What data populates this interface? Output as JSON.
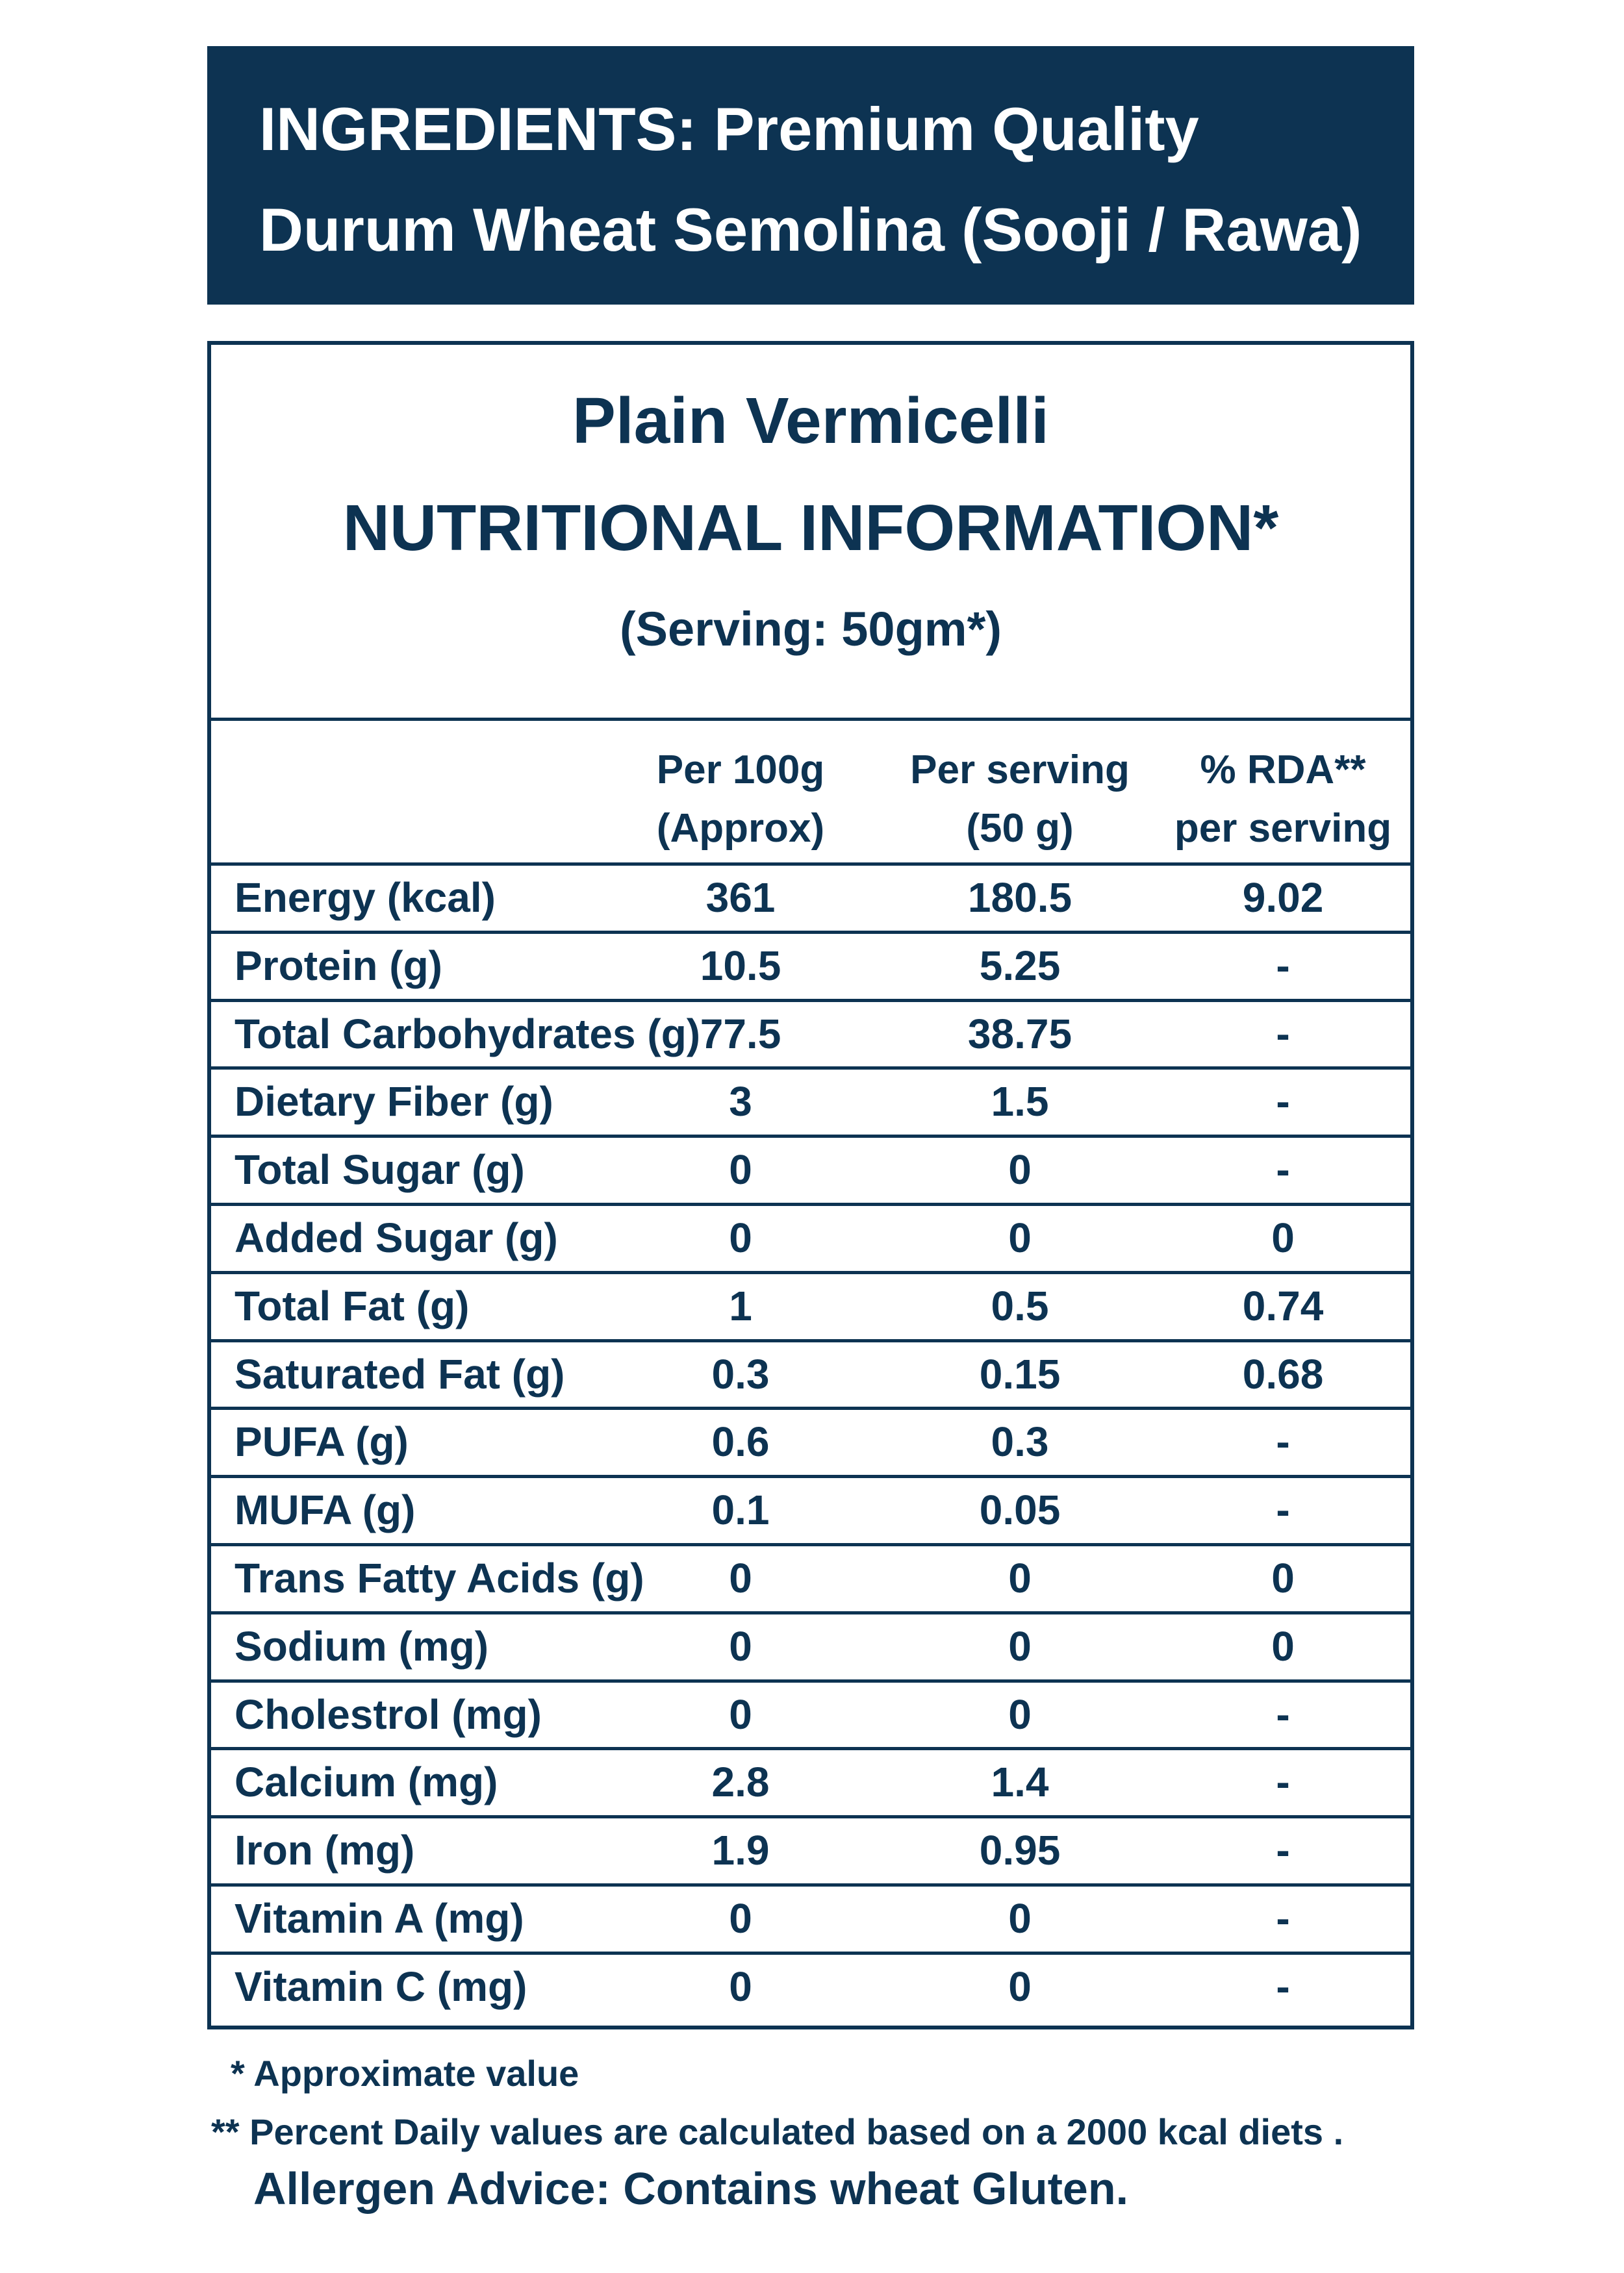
{
  "ingredients": {
    "line1": "INGREDIENTS: Premium Quality",
    "line2": "Durum Wheat Semolina (Sooji / Rawa)"
  },
  "panel": {
    "product": "Plain Vermicelli",
    "title": "NUTRITIONAL INFORMATION*",
    "serving": "(Serving: 50gm*)"
  },
  "columns": [
    {
      "line1": "Per 100g",
      "line2": "(Approx)"
    },
    {
      "line1": "Per serving",
      "line2": "(50 g)"
    },
    {
      "line1": "% RDA**",
      "line2": "per serving"
    }
  ],
  "rows": [
    {
      "label": "Energy (kcal)",
      "per100": "361",
      "serving": "180.5",
      "rda": "9.02"
    },
    {
      "label": "Protein (g)",
      "per100": "10.5",
      "serving": "5.25",
      "rda": "-"
    },
    {
      "label": "Total Carbohydrates (g)",
      "per100": "77.5",
      "serving": "38.75",
      "rda": "-"
    },
    {
      "label": "Dietary Fiber (g)",
      "per100": "3",
      "serving": "1.5",
      "rda": "-"
    },
    {
      "label": "Total Sugar (g)",
      "per100": "0",
      "serving": "0",
      "rda": "-"
    },
    {
      "label": "Added Sugar (g)",
      "per100": "0",
      "serving": "0",
      "rda": "0"
    },
    {
      "label": "Total Fat (g)",
      "per100": "1",
      "serving": "0.5",
      "rda": "0.74"
    },
    {
      "label": "Saturated Fat (g)",
      "per100": "0.3",
      "serving": "0.15",
      "rda": "0.68"
    },
    {
      "label": "PUFA (g)",
      "per100": "0.6",
      "serving": "0.3",
      "rda": "-"
    },
    {
      "label": "MUFA (g)",
      "per100": "0.1",
      "serving": "0.05",
      "rda": "-"
    },
    {
      "label": "Trans Fatty Acids (g)",
      "per100": "0",
      "serving": "0",
      "rda": "0"
    },
    {
      "label": "Sodium (mg)",
      "per100": "0",
      "serving": "0",
      "rda": "0"
    },
    {
      "label": "Cholestrol (mg)",
      "per100": "0",
      "serving": "0",
      "rda": "-"
    },
    {
      "label": "Calcium (mg)",
      "per100": "2.8",
      "serving": "1.4",
      "rda": "-"
    },
    {
      "label": "Iron (mg)",
      "per100": "1.9",
      "serving": "0.95",
      "rda": "-"
    },
    {
      "label": "Vitamin A (mg)",
      "per100": "0",
      "serving": "0",
      "rda": "-"
    },
    {
      "label": "Vitamin C (mg)",
      "per100": "0",
      "serving": "0",
      "rda": "-"
    }
  ],
  "footnotes": {
    "approx": "* Approximate value",
    "daily": "** Percent Daily values are calculated based on a 2000 kcal diets .",
    "allergen": "Allergen Advice: Contains wheat Gluten."
  },
  "colors": {
    "navy": "#0d3352",
    "background": "#ffffff"
  }
}
